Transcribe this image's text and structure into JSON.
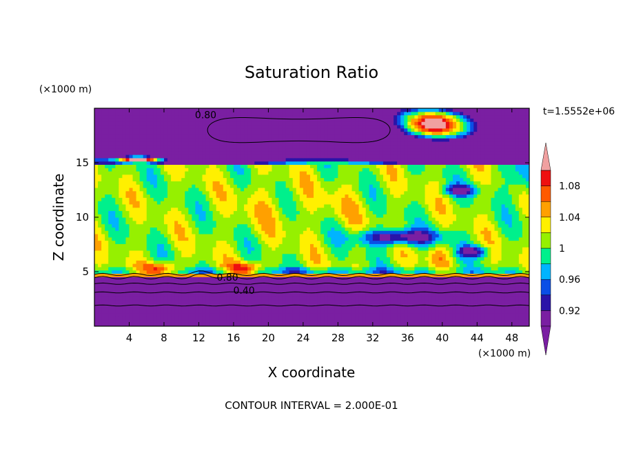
{
  "chart_data": {
    "type": "heatmap",
    "title": "Saturation Ratio",
    "xlabel": "X coordinate",
    "ylabel": "Z coordinate",
    "x_unit": "(×1000 m)",
    "y_unit": "(×1000 m)",
    "time_label": "t=1.5552e+06",
    "footer": "CONTOUR INTERVAL = 2.000E-01",
    "xlim": [
      0,
      50
    ],
    "ylim": [
      0,
      20
    ],
    "x_ticks": [
      4,
      8,
      12,
      16,
      20,
      24,
      28,
      32,
      36,
      40,
      44,
      48
    ],
    "y_ticks": [
      5,
      10,
      15
    ],
    "colorbar": {
      "levels": [
        0.9,
        0.92,
        0.94,
        0.96,
        0.98,
        1.0,
        1.02,
        1.04,
        1.06,
        1.08,
        1.1
      ],
      "tick_labels": [
        "0.92",
        "0.96",
        "1",
        "1.04",
        "1.08"
      ],
      "colors": [
        "#7a1fa2",
        "#2a14a8",
        "#0a4fe6",
        "#00b4ff",
        "#00f08c",
        "#96f000",
        "#fff000",
        "#ffa000",
        "#ff5a00",
        "#ee1010"
      ],
      "under_color": "#7a1fa2",
      "over_color": "#f0a0a0"
    },
    "contour_labels": [
      {
        "text": "0.80",
        "x": 12.8,
        "y": 19.4
      },
      {
        "text": "0.80",
        "x": 15.3,
        "y": 4.5
      },
      {
        "text": "0.40",
        "x": 17.2,
        "y": 3.3
      }
    ]
  }
}
